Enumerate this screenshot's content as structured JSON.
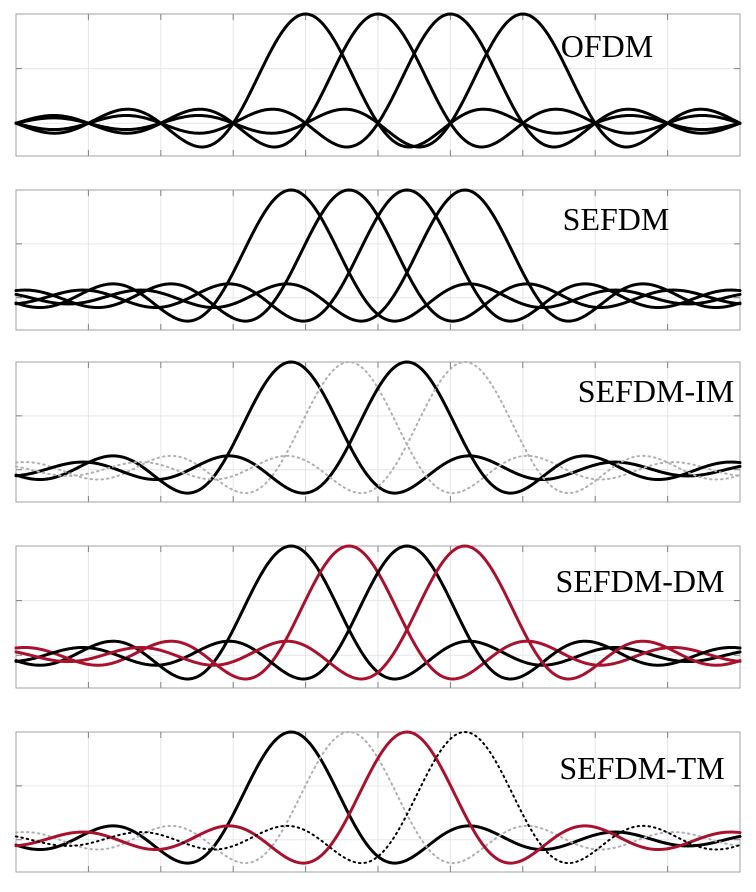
{
  "figure": {
    "description": "",
    "x_domain": [
      -4,
      6
    ],
    "y_domain": [
      -0.3,
      1.0
    ]
  },
  "chart_data": [
    {
      "type": "line",
      "title": "OFDM",
      "xlabel": "",
      "ylabel": "",
      "xlim": [
        -4,
        6
      ],
      "ylim": [
        -0.3,
        1.0
      ],
      "grid": true,
      "series": [
        {
          "center": 0.0,
          "style": "solid",
          "color": "#000000"
        },
        {
          "center": 1.0,
          "style": "solid",
          "color": "#000000"
        },
        {
          "center": 2.0,
          "style": "solid",
          "color": "#000000"
        },
        {
          "center": 3.0,
          "style": "solid",
          "color": "#000000"
        }
      ]
    },
    {
      "type": "line",
      "title": "SEFDM",
      "xlabel": "",
      "ylabel": "",
      "xlim": [
        -4,
        6
      ],
      "ylim": [
        -0.3,
        1.0
      ],
      "grid": true,
      "series": [
        {
          "center": -0.2,
          "style": "solid",
          "color": "#000000"
        },
        {
          "center": 0.6,
          "style": "solid",
          "color": "#000000"
        },
        {
          "center": 1.4,
          "style": "solid",
          "color": "#000000"
        },
        {
          "center": 2.2,
          "style": "solid",
          "color": "#000000"
        }
      ]
    },
    {
      "type": "line",
      "title": "SEFDM-IM",
      "xlabel": "",
      "ylabel": "",
      "xlim": [
        -4,
        6
      ],
      "ylim": [
        -0.3,
        1.0
      ],
      "grid": true,
      "series": [
        {
          "center": -0.2,
          "style": "solid",
          "color": "#000000"
        },
        {
          "center": 0.6,
          "style": "dotted",
          "color": "#b0b0b0"
        },
        {
          "center": 1.4,
          "style": "solid",
          "color": "#000000"
        },
        {
          "center": 2.2,
          "style": "dotted",
          "color": "#b0b0b0"
        }
      ]
    },
    {
      "type": "line",
      "title": "SEFDM-DM",
      "xlabel": "",
      "ylabel": "",
      "xlim": [
        -4,
        6
      ],
      "ylim": [
        -0.3,
        1.0
      ],
      "grid": true,
      "series": [
        {
          "center": -0.2,
          "style": "solid",
          "color": "#000000"
        },
        {
          "center": 0.6,
          "style": "solid",
          "color": "#a8122e"
        },
        {
          "center": 1.4,
          "style": "solid",
          "color": "#000000"
        },
        {
          "center": 2.2,
          "style": "solid",
          "color": "#a8122e"
        }
      ]
    },
    {
      "type": "line",
      "title": "SEFDM-TM",
      "xlabel": "",
      "ylabel": "",
      "xlim": [
        -4,
        6
      ],
      "ylim": [
        -0.3,
        1.0
      ],
      "grid": true,
      "series": [
        {
          "center": -0.2,
          "style": "solid",
          "color": "#000000"
        },
        {
          "center": 0.6,
          "style": "dotted",
          "color": "#b0b0b0"
        },
        {
          "center": 1.4,
          "style": "solid",
          "color": "#a8122e"
        },
        {
          "center": 2.2,
          "style": "dotted",
          "color": "#000000"
        }
      ]
    }
  ]
}
